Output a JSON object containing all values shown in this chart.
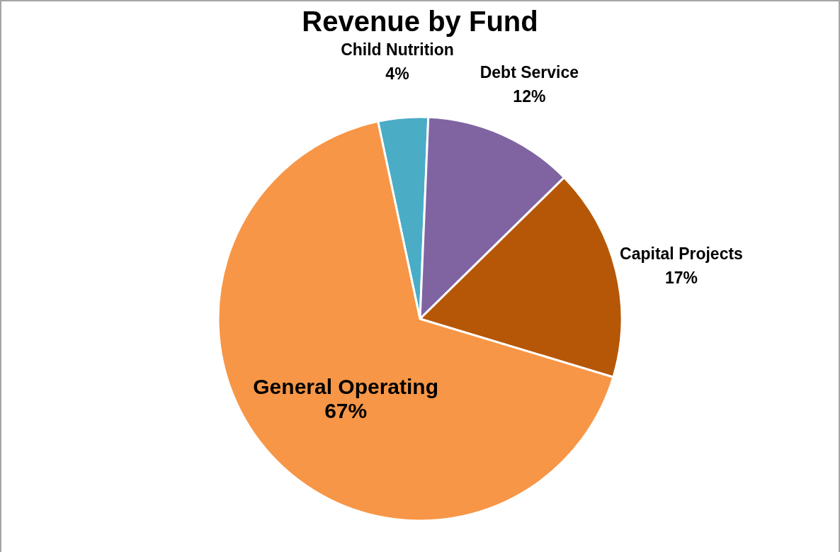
{
  "chart_data": {
    "type": "pie",
    "title": "Revenue by Fund",
    "categories": [
      "Child Nutrition",
      "Debt Service",
      "Capital Projects",
      "General Operating"
    ],
    "values": [
      4,
      12,
      17,
      67
    ],
    "colors": [
      "#4bacc6",
      "#8064a2",
      "#b65708",
      "#f79646"
    ],
    "value_labels": [
      "4%",
      "12%",
      "17%",
      "67%"
    ],
    "legend": false
  }
}
